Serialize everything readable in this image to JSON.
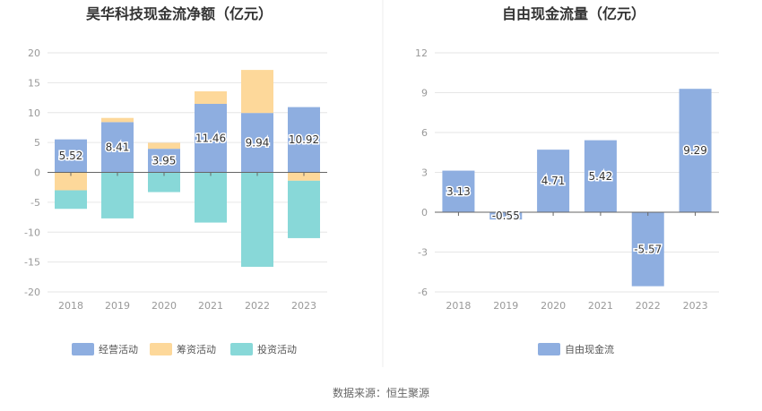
{
  "source_label": "数据来源：恒生聚源",
  "chart_data": [
    {
      "type": "bar",
      "stacked": true,
      "title": "昊华科技现金流净额（亿元）",
      "categories": [
        "2018",
        "2019",
        "2020",
        "2021",
        "2022",
        "2023"
      ],
      "ylim": [
        -20,
        20
      ],
      "yticks": [
        20,
        15,
        10,
        5,
        0,
        -5,
        -10,
        -15,
        -20
      ],
      "grid": true,
      "legend_position": "bottom",
      "series": [
        {
          "name": "经营活动",
          "color": "#8eaee0",
          "values": [
            5.52,
            8.41,
            3.95,
            11.46,
            9.94,
            10.92
          ],
          "labeled": true
        },
        {
          "name": "筹资活动",
          "color": "#fdd89a",
          "values": [
            -3.0,
            0.7,
            1.0,
            2.1,
            7.2,
            -1.4
          ],
          "labeled": false
        },
        {
          "name": "投资活动",
          "color": "#88d8d8",
          "values": [
            -3.1,
            -7.7,
            -3.3,
            -8.4,
            -15.8,
            -9.6
          ],
          "labeled": false
        }
      ]
    },
    {
      "type": "bar",
      "title": "自由现金流量（亿元）",
      "categories": [
        "2018",
        "2019",
        "2020",
        "2021",
        "2022",
        "2023"
      ],
      "ylim": [
        -6,
        12
      ],
      "yticks": [
        12,
        9,
        6,
        3,
        0,
        -3,
        -6
      ],
      "grid": true,
      "legend_position": "bottom",
      "series": [
        {
          "name": "自由现金流",
          "color": "#8eaee0",
          "values": [
            3.13,
            -0.55,
            4.71,
            5.42,
            -5.57,
            9.29
          ],
          "labeled": true
        }
      ]
    }
  ]
}
